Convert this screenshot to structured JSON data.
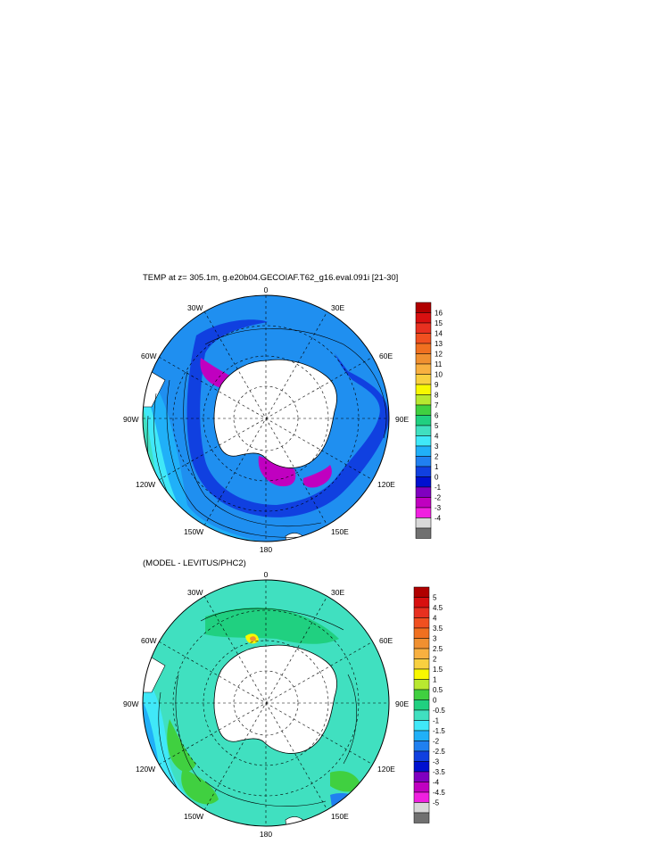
{
  "panels": [
    {
      "title": "TEMP at z= 305.1m, g.e20b04.GECOIAF.T62_g16.eval.091i [21-30]",
      "lon_labels": {
        "l0": "0",
        "l30e": "30E",
        "l60e": "60E",
        "l90e": "90E",
        "l120e": "120E",
        "l150e": "150E",
        "l180": "180",
        "l150w": "150W",
        "l120w": "120W",
        "l90w": "90W",
        "l60w": "60W",
        "l30w": "30W"
      },
      "colorbar": {
        "labels": [
          "16",
          "15",
          "14",
          "13",
          "12",
          "11",
          "10",
          "9",
          "8",
          "7",
          "6",
          "5",
          "4",
          "3",
          "2",
          "1",
          "0",
          "-1",
          "-2",
          "-3",
          "-4"
        ],
        "colors": [
          "#b00000",
          "#d81010",
          "#e83020",
          "#f05020",
          "#f07020",
          "#f09030",
          "#f8b040",
          "#f8d040",
          "#f8f800",
          "#b8e830",
          "#40d040",
          "#20d080",
          "#40e0c0",
          "#40e8f8",
          "#20b0f8",
          "#2080f0",
          "#1040e0",
          "#0010d0",
          "#8000c0",
          "#c000c0",
          "#f020e0",
          "#d8d8d8",
          "#707070"
        ]
      },
      "field": {
        "background_color": "#1f8ff0",
        "antarctica_color": "#ffffff",
        "land_color": "#ffffff"
      }
    },
    {
      "title": "(MODEL - LEVITUS/PHC2)",
      "lon_labels": {
        "l0": "0",
        "l30e": "30E",
        "l60e": "60E",
        "l90e": "90E",
        "l120e": "120E",
        "l150e": "150E",
        "l180": "180",
        "l150w": "150W",
        "l120w": "120W",
        "l90w": "90W",
        "l60w": "60W",
        "l30w": "30W"
      },
      "colorbar": {
        "labels": [
          "5",
          "4.5",
          "4",
          "3.5",
          "3",
          "2.5",
          "2",
          "1.5",
          "1",
          "0.5",
          "0",
          "-0.5",
          "-1",
          "-1.5",
          "-2",
          "-2.5",
          "-3",
          "-3.5",
          "-4",
          "-4.5",
          "-5"
        ],
        "colors": [
          "#b00000",
          "#d81010",
          "#e83020",
          "#f05020",
          "#f07020",
          "#f09030",
          "#f8b040",
          "#f8d040",
          "#f8f800",
          "#b8e830",
          "#40d040",
          "#20d080",
          "#40e0c0",
          "#40e8f8",
          "#20b0f8",
          "#2080f0",
          "#1040e0",
          "#0010d0",
          "#8000c0",
          "#c000c0",
          "#f020e0",
          "#d8d8d8",
          "#707070"
        ]
      },
      "field": {
        "background_color": "#40e0c0",
        "antarctica_color": "#ffffff",
        "land_color": "#ffffff"
      }
    }
  ]
}
